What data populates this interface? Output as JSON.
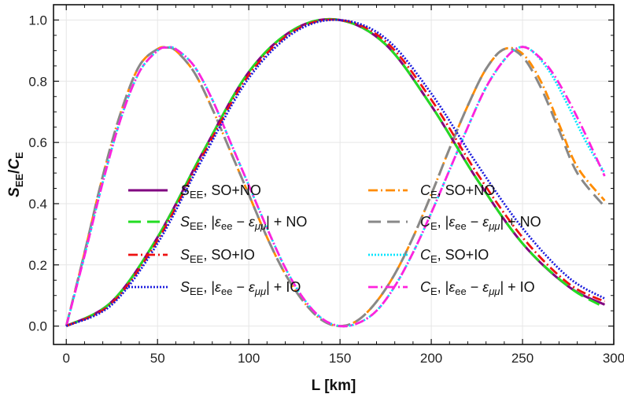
{
  "chart_data": {
    "type": "line",
    "xlabel": "L [km]",
    "ylabel": "S_EE/C_E",
    "xlim": [
      -7,
      300
    ],
    "ylim": [
      -0.06,
      1.05
    ],
    "xticks": [
      0,
      50,
      100,
      150,
      200,
      250,
      300
    ],
    "yticks": [
      0.0,
      0.2,
      0.4,
      0.6,
      0.8,
      1.0
    ],
    "xtick_labels": [
      "0",
      "50",
      "100",
      "150",
      "200",
      "250",
      "300"
    ],
    "ytick_labels": [
      "0.0",
      "0.2",
      "0.4",
      "0.6",
      "0.8",
      "1.0"
    ],
    "grid": true,
    "legend_placement": "center (two columns)",
    "series": [
      {
        "name": "S_EE, SO+NO",
        "color": "#800080",
        "dash": "solid",
        "x": [
          0,
          25,
          50,
          75,
          100,
          125,
          150,
          175,
          200,
          225,
          250,
          275,
          295
        ],
        "y": [
          0.0,
          0.08,
          0.29,
          0.57,
          0.83,
          0.97,
          1.0,
          0.92,
          0.72,
          0.48,
          0.27,
          0.13,
          0.07
        ]
      },
      {
        "name": "S_EE, |ε_ee − ε_μμ| + NO",
        "color": "#22dd22",
        "dash": "longdash",
        "x": [
          0,
          25,
          50,
          75,
          100,
          125,
          150,
          175,
          200,
          225,
          250,
          275,
          292
        ],
        "y": [
          0.0,
          0.08,
          0.29,
          0.57,
          0.83,
          0.97,
          1.0,
          0.92,
          0.72,
          0.48,
          0.27,
          0.13,
          0.07
        ]
      },
      {
        "name": "S_EE, SO+IO",
        "color": "#ee1111",
        "dash": "dashdot",
        "x": [
          0,
          25,
          50,
          75,
          100,
          125,
          150,
          175,
          200,
          225,
          250,
          275,
          295
        ],
        "y": [
          0.0,
          0.075,
          0.28,
          0.56,
          0.82,
          0.965,
          1.0,
          0.93,
          0.74,
          0.5,
          0.29,
          0.14,
          0.08
        ]
      },
      {
        "name": "S_EE, |ε_ee − ε_μμ| + IO",
        "color": "#1a1add",
        "dash": "dotted",
        "x": [
          0,
          25,
          50,
          75,
          100,
          125,
          150,
          175,
          200,
          225,
          250,
          275,
          295
        ],
        "y": [
          0.0,
          0.07,
          0.27,
          0.55,
          0.81,
          0.96,
          1.0,
          0.94,
          0.76,
          0.53,
          0.32,
          0.16,
          0.09
        ]
      },
      {
        "name": "C_E, SO+NO",
        "color": "#ff8c00",
        "dash": "dashdot",
        "x": [
          0,
          10,
          20,
          30,
          40,
          50,
          55,
          60,
          70,
          80,
          90,
          100,
          110,
          120,
          130,
          140,
          150,
          160,
          170,
          180,
          190,
          200,
          210,
          220,
          230,
          240,
          250,
          260,
          270,
          280,
          295
        ],
        "y": [
          0.0,
          0.24,
          0.49,
          0.7,
          0.85,
          0.905,
          0.91,
          0.9,
          0.83,
          0.71,
          0.57,
          0.43,
          0.29,
          0.17,
          0.08,
          0.02,
          0.0,
          0.02,
          0.08,
          0.17,
          0.29,
          0.43,
          0.58,
          0.72,
          0.84,
          0.905,
          0.89,
          0.8,
          0.66,
          0.52,
          0.41
        ]
      },
      {
        "name": "C_E, |ε_ee − ε_μμ| + NO",
        "color": "#888888",
        "dash": "longdash",
        "x": [
          0,
          10,
          20,
          30,
          40,
          50,
          55,
          60,
          70,
          80,
          90,
          100,
          110,
          120,
          130,
          140,
          150,
          160,
          170,
          180,
          190,
          200,
          210,
          220,
          230,
          240,
          250,
          260,
          270,
          280,
          295
        ],
        "y": [
          0.0,
          0.24,
          0.49,
          0.7,
          0.85,
          0.905,
          0.91,
          0.9,
          0.83,
          0.71,
          0.57,
          0.43,
          0.29,
          0.17,
          0.08,
          0.02,
          0.0,
          0.02,
          0.08,
          0.17,
          0.29,
          0.43,
          0.58,
          0.72,
          0.84,
          0.905,
          0.88,
          0.78,
          0.64,
          0.5,
          0.39
        ]
      },
      {
        "name": "C_E, SO+IO",
        "color": "#00e5ff",
        "dash": "dotted",
        "x": [
          0,
          10,
          20,
          30,
          40,
          50,
          55,
          60,
          70,
          80,
          90,
          100,
          110,
          120,
          130,
          140,
          150,
          160,
          170,
          180,
          190,
          200,
          210,
          220,
          230,
          240,
          248,
          255,
          265,
          275,
          285,
          295
        ],
        "y": [
          0.0,
          0.23,
          0.47,
          0.68,
          0.83,
          0.9,
          0.91,
          0.905,
          0.85,
          0.74,
          0.6,
          0.46,
          0.32,
          0.19,
          0.09,
          0.025,
          0.0,
          0.01,
          0.05,
          0.13,
          0.24,
          0.37,
          0.51,
          0.65,
          0.78,
          0.87,
          0.91,
          0.9,
          0.83,
          0.72,
          0.6,
          0.5
        ]
      },
      {
        "name": "C_E, |ε_ee − ε_μμ| + IO",
        "color": "#ff22dd",
        "dash": "dashdot",
        "x": [
          0,
          10,
          20,
          30,
          40,
          50,
          55,
          60,
          70,
          80,
          90,
          100,
          110,
          120,
          130,
          140,
          150,
          160,
          170,
          180,
          190,
          200,
          210,
          220,
          230,
          240,
          248,
          255,
          265,
          275,
          285,
          295
        ],
        "y": [
          0.0,
          0.23,
          0.47,
          0.68,
          0.83,
          0.9,
          0.91,
          0.905,
          0.85,
          0.74,
          0.6,
          0.46,
          0.32,
          0.19,
          0.09,
          0.025,
          0.0,
          0.01,
          0.05,
          0.13,
          0.24,
          0.37,
          0.51,
          0.65,
          0.78,
          0.87,
          0.91,
          0.9,
          0.84,
          0.74,
          0.62,
          0.49
        ]
      }
    ],
    "legend": {
      "left_column": [
        {
          "sym": "S",
          "sub": "EE",
          "suffix_plain": ", SO+NO",
          "has_eps": false
        },
        {
          "sym": "S",
          "sub": "EE",
          "suffix_plain": ", |",
          "has_eps": true,
          "eps_tail": "| + NO"
        },
        {
          "sym": "S",
          "sub": "EE",
          "suffix_plain": ", SO+IO",
          "has_eps": false
        },
        {
          "sym": "S",
          "sub": "EE",
          "suffix_plain": ", |",
          "has_eps": true,
          "eps_tail": "| + IO"
        }
      ],
      "right_column": [
        {
          "sym": "C",
          "sub": "E",
          "suffix_plain": ", SO+NO",
          "has_eps": false
        },
        {
          "sym": "C",
          "sub": "E",
          "suffix_plain": ", |",
          "has_eps": true,
          "eps_tail": "| + NO"
        },
        {
          "sym": "C",
          "sub": "E",
          "suffix_plain": ", SO+IO",
          "has_eps": false
        },
        {
          "sym": "C",
          "sub": "E",
          "suffix_plain": ", |",
          "has_eps": true,
          "eps_tail": "| + IO"
        }
      ],
      "eps_parts": {
        "eps": "ε",
        "sub1": "ee",
        "minus": " − ",
        "sub2": "μμ"
      }
    },
    "ylabel_parts": {
      "s": "S",
      "s_sub": "EE",
      "slash": "/",
      "c": "C",
      "c_sub": "E"
    }
  }
}
